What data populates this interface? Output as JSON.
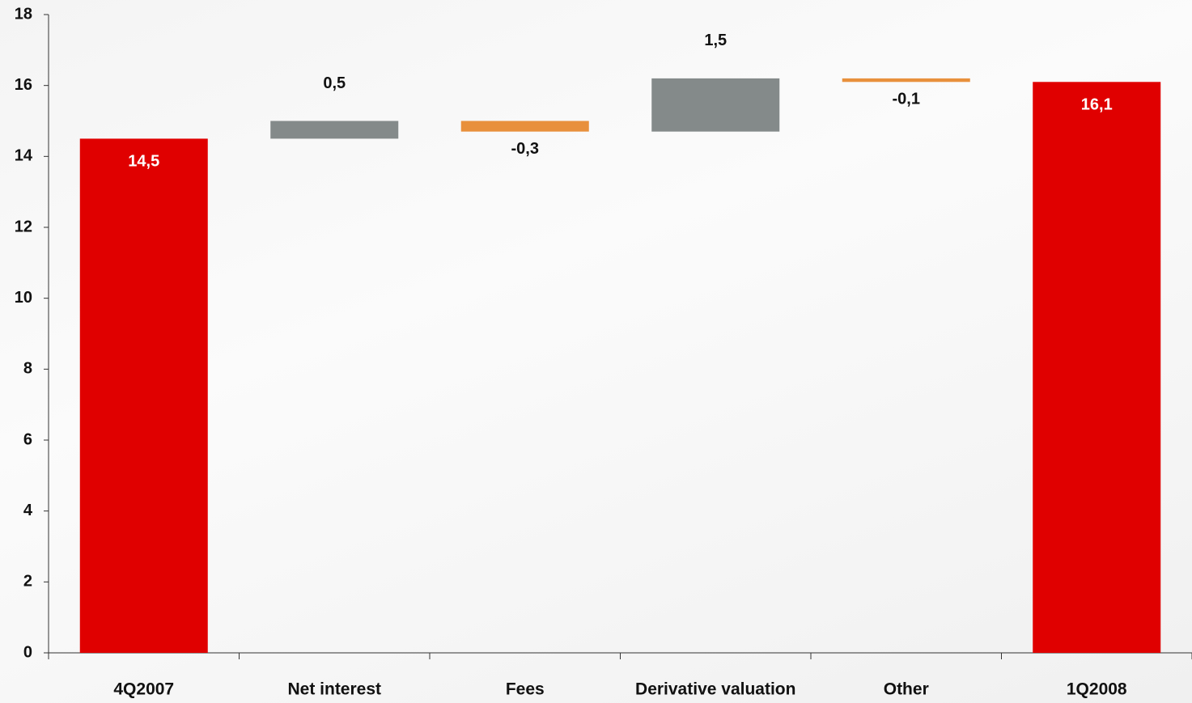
{
  "chart_data": {
    "type": "waterfall",
    "categories": [
      "4Q2007",
      "Net interest",
      "Fees",
      "Derivative valuation",
      "Other",
      "1Q2008"
    ],
    "values": [
      14.5,
      0.5,
      -0.3,
      1.5,
      -0.1,
      16.1
    ],
    "value_labels": [
      "14,5",
      "0,5",
      "-0,3",
      "1,5",
      "-0,1",
      "16,1"
    ],
    "colors": [
      "#e00000",
      "#848a8a",
      "#e8903c",
      "#848a8a",
      "#e8903c",
      "#e00000"
    ],
    "ylim": [
      0,
      18
    ],
    "yticks": [
      0,
      2,
      4,
      6,
      8,
      10,
      12,
      14,
      16,
      18
    ],
    "grid": false
  }
}
